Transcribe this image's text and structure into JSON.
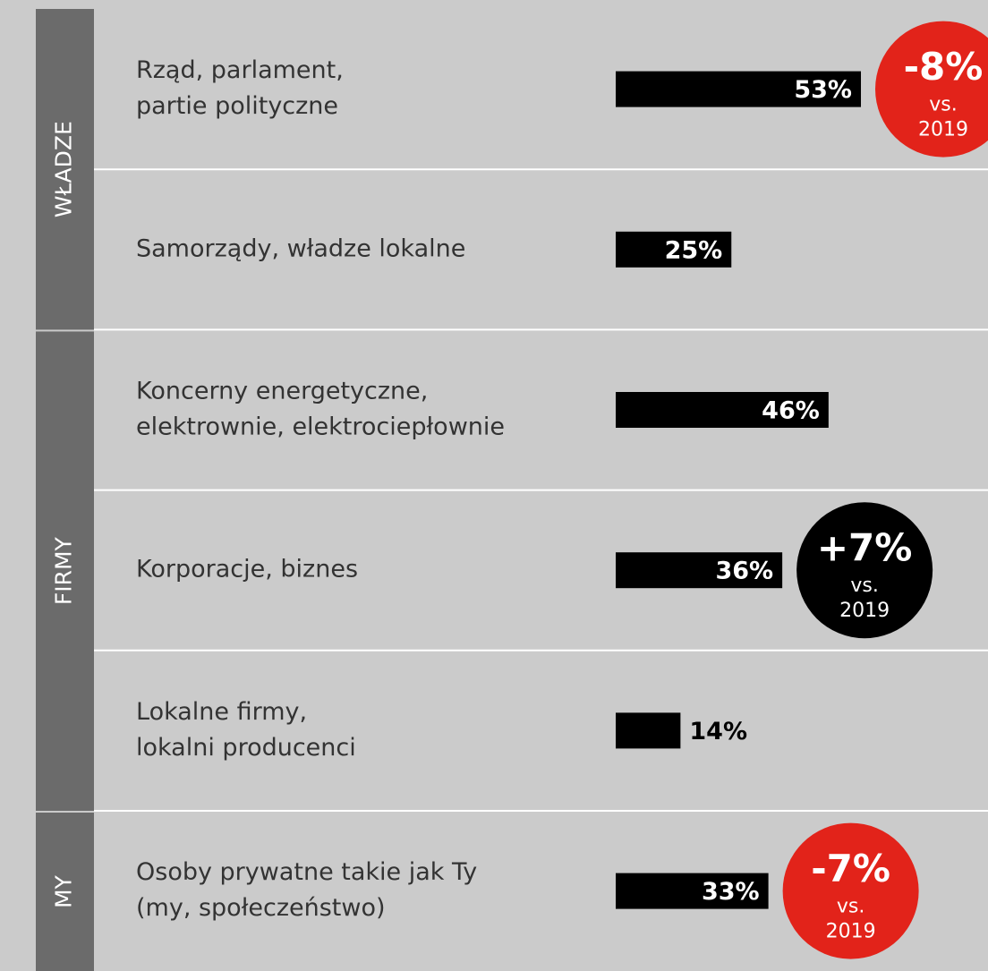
{
  "chart_data": {
    "type": "bar",
    "bar_color": "#000000",
    "groups": [
      {
        "name": "WŁADZE",
        "categories": [
          [
            "Rząd, parlament,",
            "partie polityczne"
          ],
          [
            "Samorządy, władze lokalne"
          ]
        ],
        "values": [
          53,
          25
        ],
        "value_labels": [
          "53%",
          "25%"
        ],
        "badges": [
          {
            "value": -8,
            "label": "-8%",
            "compare": [
              "vs.",
              "2019"
            ],
            "color": "#e2231a"
          },
          null
        ]
      },
      {
        "name": "FIRMY",
        "categories": [
          [
            "Koncerny energetyczne,",
            "elektrownie, elektrociepłownie"
          ],
          [
            "Korporacje, biznes"
          ],
          [
            "Lokalne firmy,",
            "lokalni producenci"
          ]
        ],
        "values": [
          46,
          36,
          14
        ],
        "value_labels": [
          "46%",
          "36%",
          "14%"
        ],
        "badges": [
          null,
          {
            "value": 7,
            "label": "+7%",
            "compare": [
              "vs.",
              "2019"
            ],
            "color": "#000000"
          },
          null
        ]
      },
      {
        "name": "MY",
        "categories": [
          [
            "Osoby prywatne takie jak Ty",
            "(my, społeczeństwo)"
          ]
        ],
        "values": [
          33
        ],
        "value_labels": [
          "33%"
        ],
        "badges": [
          {
            "value": -7,
            "label": "-7%",
            "compare": [
              "vs.",
              "2019"
            ],
            "color": "#e2231a"
          }
        ]
      }
    ]
  }
}
